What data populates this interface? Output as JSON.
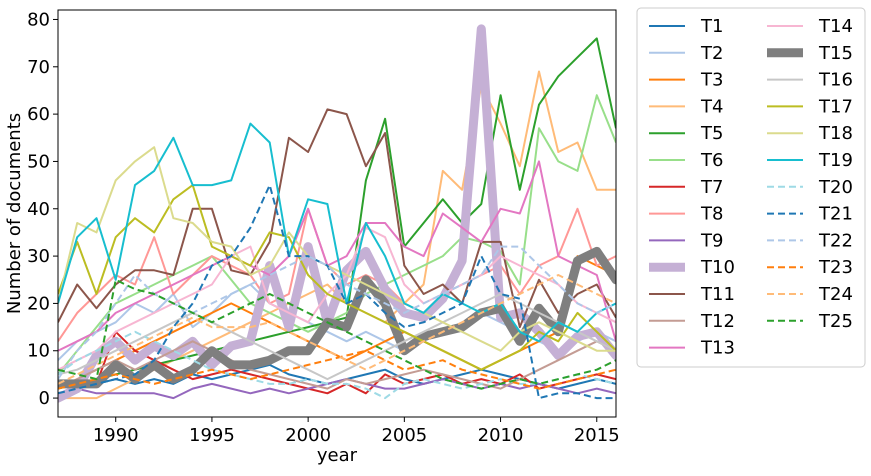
{
  "chart_data": {
    "type": "line",
    "title": "",
    "xlabel": "year",
    "ylabel": "Number of documents",
    "xlim": [
      1987,
      2016
    ],
    "ylim": [
      -4,
      82
    ],
    "xticks": [
      1990,
      1995,
      2000,
      2005,
      2010,
      2015
    ],
    "yticks": [
      0,
      10,
      20,
      30,
      40,
      50,
      60,
      70,
      80
    ],
    "grid": false,
    "legend_position": "outside-right",
    "legend_columns": 2,
    "x": [
      1987,
      1988,
      1989,
      1990,
      1991,
      1992,
      1993,
      1994,
      1995,
      1996,
      1997,
      1998,
      1999,
      2000,
      2001,
      2002,
      2003,
      2004,
      2005,
      2006,
      2007,
      2008,
      2009,
      2010,
      2011,
      2012,
      2013,
      2014,
      2015,
      2016
    ],
    "series": [
      {
        "name": "T1",
        "color": "#1f77b4",
        "style": "solid",
        "emphasis": false,
        "values": [
          3,
          2,
          3,
          4,
          3,
          4,
          3,
          5,
          4,
          5,
          6,
          7,
          5,
          4,
          3,
          4,
          5,
          6,
          4,
          3,
          4,
          5,
          6,
          5,
          4,
          3,
          2,
          3,
          4,
          3
        ]
      },
      {
        "name": "T2",
        "color": "#aec7e8",
        "style": "solid",
        "emphasis": false,
        "values": [
          8,
          12,
          14,
          16,
          20,
          18,
          22,
          15,
          18,
          22,
          24,
          20,
          18,
          16,
          14,
          12,
          14,
          12,
          10,
          12,
          14,
          16,
          18,
          16,
          14,
          12,
          10,
          12,
          14,
          12
        ]
      },
      {
        "name": "T3",
        "color": "#ff7f0e",
        "style": "solid",
        "emphasis": false,
        "values": [
          2,
          4,
          6,
          8,
          10,
          12,
          14,
          16,
          18,
          20,
          18,
          16,
          14,
          12,
          10,
          8,
          10,
          12,
          14,
          12,
          10,
          8,
          6,
          8,
          10,
          12,
          14,
          30,
          28,
          26
        ]
      },
      {
        "name": "T4",
        "color": "#ffbb78",
        "style": "solid",
        "emphasis": false,
        "values": [
          0,
          0,
          0,
          2,
          4,
          6,
          8,
          10,
          12,
          14,
          16,
          18,
          20,
          22,
          24,
          20,
          18,
          16,
          20,
          24,
          48,
          44,
          66,
          58,
          49,
          69,
          52,
          54,
          44,
          44
        ]
      },
      {
        "name": "T5",
        "color": "#2ca02c",
        "style": "solid",
        "emphasis": false,
        "values": [
          2,
          3,
          4,
          5,
          6,
          7,
          8,
          9,
          10,
          11,
          12,
          13,
          14,
          15,
          16,
          17,
          46,
          59,
          32,
          37,
          42,
          37,
          41,
          64,
          44,
          62,
          68,
          72,
          76,
          57
        ]
      },
      {
        "name": "T6",
        "color": "#98df8a",
        "style": "solid",
        "emphasis": false,
        "values": [
          5,
          10,
          15,
          20,
          22,
          24,
          26,
          28,
          30,
          25,
          20,
          18,
          16,
          14,
          16,
          18,
          22,
          24,
          26,
          28,
          30,
          34,
          33,
          31,
          24,
          57,
          50,
          48,
          64,
          54
        ]
      },
      {
        "name": "T7",
        "color": "#d62728",
        "style": "solid",
        "emphasis": false,
        "values": [
          1,
          2,
          3,
          14,
          10,
          8,
          6,
          4,
          5,
          6,
          5,
          4,
          3,
          2,
          1,
          3,
          1,
          5,
          3,
          4,
          5,
          3,
          4,
          3,
          5,
          2,
          3,
          4,
          5,
          4
        ]
      },
      {
        "name": "T8",
        "color": "#ff9896",
        "style": "solid",
        "emphasis": false,
        "values": [
          12,
          18,
          22,
          26,
          24,
          34,
          22,
          26,
          30,
          28,
          26,
          20,
          22,
          40,
          28,
          24,
          26,
          24,
          20,
          18,
          22,
          24,
          26,
          28,
          22,
          28,
          30,
          40,
          28,
          30
        ]
      },
      {
        "name": "T9",
        "color": "#9467bd",
        "style": "solid",
        "emphasis": false,
        "values": [
          1,
          2,
          1,
          1,
          1,
          1,
          0,
          2,
          3,
          2,
          1,
          2,
          1,
          2,
          3,
          4,
          3,
          2,
          2,
          3,
          4,
          3,
          2,
          3,
          2,
          3,
          2,
          1,
          2,
          1
        ]
      },
      {
        "name": "T10",
        "color": "#c5b0d5",
        "style": "solid",
        "emphasis": true,
        "values": [
          0,
          2,
          9,
          12,
          8,
          11,
          9,
          12,
          7,
          11,
          12,
          28,
          15,
          32,
          16,
          27,
          31,
          23,
          18,
          17,
          21,
          29,
          78,
          17,
          18,
          14,
          9,
          13,
          14,
          9
        ]
      },
      {
        "name": "T11",
        "color": "#8c564b",
        "style": "solid",
        "emphasis": false,
        "values": [
          16,
          24,
          19,
          24,
          27,
          27,
          26,
          40,
          40,
          27,
          26,
          33,
          55,
          52,
          61,
          60,
          49,
          56,
          28,
          22,
          24,
          20,
          33,
          33,
          15,
          25,
          18,
          22,
          24,
          17
        ]
      },
      {
        "name": "T12",
        "color": "#c49c94",
        "style": "solid",
        "emphasis": false,
        "values": [
          2,
          4,
          6,
          8,
          6,
          8,
          10,
          12,
          10,
          8,
          6,
          5,
          4,
          3,
          2,
          4,
          3,
          4,
          5,
          6,
          5,
          4,
          3,
          2,
          4,
          6,
          8,
          10,
          12,
          10
        ]
      },
      {
        "name": "T13",
        "color": "#e377c2",
        "style": "solid",
        "emphasis": false,
        "values": [
          10,
          12,
          14,
          18,
          20,
          22,
          24,
          26,
          28,
          30,
          28,
          26,
          30,
          40,
          28,
          30,
          37,
          37,
          32,
          30,
          39,
          36,
          33,
          40,
          39,
          50,
          30,
          28,
          26,
          12
        ]
      },
      {
        "name": "T14",
        "color": "#f7b6d2",
        "style": "solid",
        "emphasis": false,
        "values": [
          6,
          8,
          10,
          14,
          16,
          18,
          20,
          22,
          24,
          30,
          32,
          20,
          18,
          16,
          22,
          26,
          36,
          34,
          24,
          20,
          22,
          24,
          26,
          30,
          28,
          26,
          24,
          20,
          18,
          16
        ]
      },
      {
        "name": "T15",
        "color": "#7f7f7f",
        "style": "solid",
        "emphasis": true,
        "values": [
          3,
          3,
          3,
          7,
          4,
          7,
          4,
          6,
          10,
          7,
          7,
          8,
          10,
          10,
          16,
          15,
          25,
          20,
          10,
          13,
          14,
          15,
          18,
          19,
          12,
          19,
          14,
          29,
          31,
          25
        ]
      },
      {
        "name": "T16",
        "color": "#c7c7c7",
        "style": "solid",
        "emphasis": false,
        "values": [
          5,
          6,
          8,
          10,
          12,
          14,
          16,
          18,
          16,
          14,
          12,
          10,
          8,
          6,
          4,
          6,
          8,
          10,
          12,
          14,
          16,
          18,
          20,
          22,
          20,
          18,
          16,
          14,
          12,
          10
        ]
      },
      {
        "name": "T17",
        "color": "#bcbd22",
        "style": "solid",
        "emphasis": false,
        "values": [
          22,
          33,
          22,
          34,
          38,
          35,
          42,
          45,
          32,
          30,
          28,
          35,
          34,
          26,
          22,
          20,
          18,
          16,
          14,
          12,
          10,
          8,
          6,
          8,
          10,
          14,
          12,
          18,
          14,
          10
        ]
      },
      {
        "name": "T18",
        "color": "#dbdb8d",
        "style": "solid",
        "emphasis": false,
        "values": [
          20,
          37,
          35,
          46,
          50,
          53,
          38,
          37,
          33,
          32,
          26,
          28,
          35,
          30,
          28,
          26,
          24,
          22,
          20,
          18,
          16,
          14,
          12,
          10,
          14,
          16,
          14,
          12,
          10,
          10
        ]
      },
      {
        "name": "T19",
        "color": "#17becf",
        "style": "solid",
        "emphasis": false,
        "values": [
          20,
          34,
          38,
          25,
          45,
          48,
          55,
          45,
          45,
          46,
          58,
          54,
          30,
          42,
          41,
          20,
          37,
          30,
          20,
          18,
          22,
          20,
          18,
          20,
          14,
          12,
          16,
          14,
          18,
          20
        ]
      },
      {
        "name": "T20",
        "color": "#9edae5",
        "style": "dashed",
        "emphasis": false,
        "values": [
          5,
          8,
          10,
          12,
          14,
          12,
          10,
          8,
          6,
          5,
          4,
          3,
          3,
          4,
          3,
          3,
          2,
          0,
          3,
          4,
          3,
          2,
          3,
          4,
          3,
          3,
          4,
          5,
          4,
          3
        ]
      },
      {
        "name": "T21",
        "color": "#1f77b4",
        "style": "dashed",
        "emphasis": false,
        "values": [
          1,
          2,
          3,
          4,
          5,
          8,
          15,
          20,
          28,
          30,
          36,
          45,
          30,
          30,
          28,
          20,
          22,
          18,
          15,
          16,
          18,
          20,
          30,
          22,
          21,
          0,
          1,
          1,
          0,
          0
        ]
      },
      {
        "name": "T22",
        "color": "#aec7e8",
        "style": "dashed",
        "emphasis": false,
        "values": [
          4,
          10,
          14,
          20,
          26,
          22,
          20,
          18,
          20,
          22,
          24,
          26,
          28,
          30,
          28,
          24,
          22,
          20,
          18,
          20,
          22,
          24,
          26,
          32,
          32,
          28,
          24,
          20,
          18,
          20
        ]
      },
      {
        "name": "T23",
        "color": "#ff7f0e",
        "style": "dashed",
        "emphasis": false,
        "values": [
          2,
          3,
          4,
          5,
          4,
          3,
          4,
          5,
          6,
          5,
          4,
          5,
          6,
          7,
          8,
          9,
          10,
          8,
          6,
          7,
          8,
          6,
          5,
          4,
          3,
          2,
          3,
          4,
          5,
          6
        ]
      },
      {
        "name": "T24",
        "color": "#ffbb78",
        "style": "dashed",
        "emphasis": false,
        "values": [
          3,
          5,
          7,
          9,
          11,
          13,
          15,
          17,
          15,
          15,
          15,
          16,
          14,
          12,
          10,
          8,
          6,
          8,
          10,
          12,
          14,
          16,
          18,
          20,
          22,
          24,
          26,
          24,
          22,
          20
        ]
      },
      {
        "name": "T25",
        "color": "#2ca02c",
        "style": "dashed",
        "emphasis": false,
        "values": [
          6,
          5,
          4,
          25,
          23,
          22,
          20,
          18,
          16,
          18,
          20,
          22,
          20,
          18,
          16,
          14,
          12,
          10,
          8,
          6,
          4,
          3,
          2,
          3,
          4,
          3,
          4,
          5,
          6,
          8
        ]
      }
    ]
  }
}
